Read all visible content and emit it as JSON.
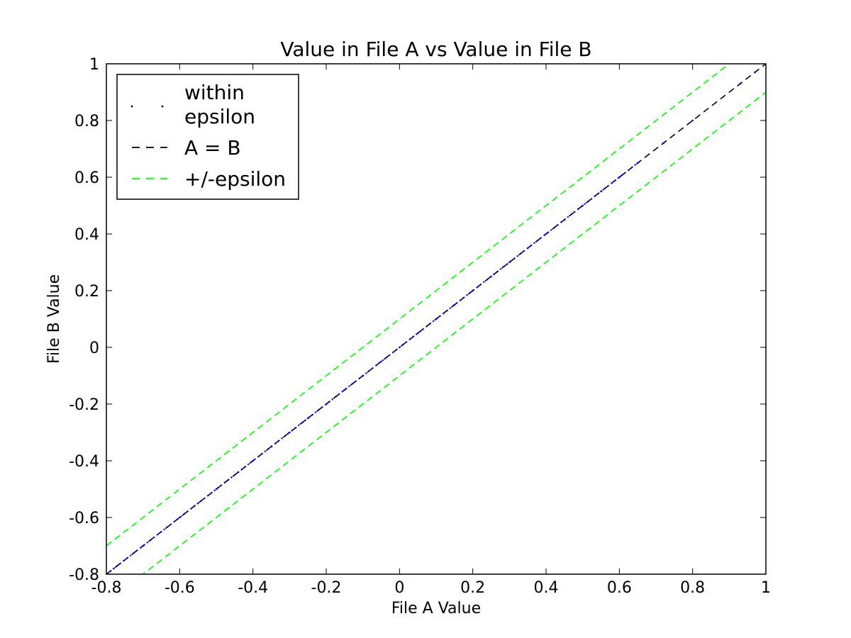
{
  "chart_data": {
    "type": "line",
    "title": "Value in File A vs Value in File B",
    "xlabel": "File A Value",
    "ylabel": "File B Value",
    "xlim": [
      -0.8,
      1
    ],
    "ylim": [
      -0.8,
      1
    ],
    "xticks": [
      -0.8,
      -0.6,
      -0.4,
      -0.2,
      0,
      0.2,
      0.4,
      0.6,
      0.8,
      1
    ],
    "yticks": [
      -0.8,
      -0.6,
      -0.4,
      -0.2,
      0,
      0.2,
      0.4,
      0.6,
      0.8,
      1
    ],
    "xtick_labels": [
      "-0.8",
      "-0.6",
      "-0.4",
      "-0.2",
      "0",
      "0.2",
      "0.4",
      "0.6",
      "0.8",
      "1"
    ],
    "ytick_labels": [
      "-0.8",
      "-0.6",
      "-0.4",
      "-0.2",
      "0",
      "0.2",
      "0.4",
      "0.6",
      "0.8",
      "1"
    ],
    "grid": false,
    "legend_position": "top-left",
    "series": [
      {
        "name": "within epsilon",
        "label_lines": [
          "within",
          "epsilon"
        ],
        "style": "points",
        "color": "#0000ff",
        "x": [
          -0.78,
          -0.7,
          -0.6,
          -0.55,
          -0.5,
          -0.44,
          -0.4,
          -0.35,
          -0.3,
          -0.25,
          -0.2,
          -0.15,
          -0.1,
          -0.05,
          0,
          0.05,
          0.1,
          0.15,
          0.2,
          0.25,
          0.3,
          0.35,
          0.4,
          0.45,
          0.5,
          0.55,
          0.6,
          0.65,
          0.72,
          0.8,
          0.93,
          0.97
        ],
        "y": [
          -0.78,
          -0.7,
          -0.6,
          -0.55,
          -0.5,
          -0.44,
          -0.4,
          -0.35,
          -0.3,
          -0.25,
          -0.2,
          -0.15,
          -0.1,
          -0.05,
          0,
          0.05,
          0.1,
          0.15,
          0.2,
          0.25,
          0.3,
          0.35,
          0.4,
          0.45,
          0.5,
          0.55,
          0.6,
          0.65,
          0.72,
          0.8,
          0.93,
          0.97
        ]
      },
      {
        "name": "A = B",
        "label_lines": [
          "A = B"
        ],
        "style": "dashed",
        "color": "#000000",
        "x": [
          -0.8,
          1
        ],
        "y": [
          -0.8,
          1
        ]
      },
      {
        "name": "+/-epsilon",
        "label_lines": [
          "+/-epsilon"
        ],
        "style": "dashed",
        "color": "#00ff00",
        "x": [
          -0.8,
          1
        ],
        "y": [
          -0.7,
          1.1
        ]
      },
      {
        "name": "",
        "style": "dashed",
        "color": "#00ff00",
        "x": [
          -0.8,
          1
        ],
        "y": [
          -0.9,
          0.9
        ]
      }
    ]
  }
}
